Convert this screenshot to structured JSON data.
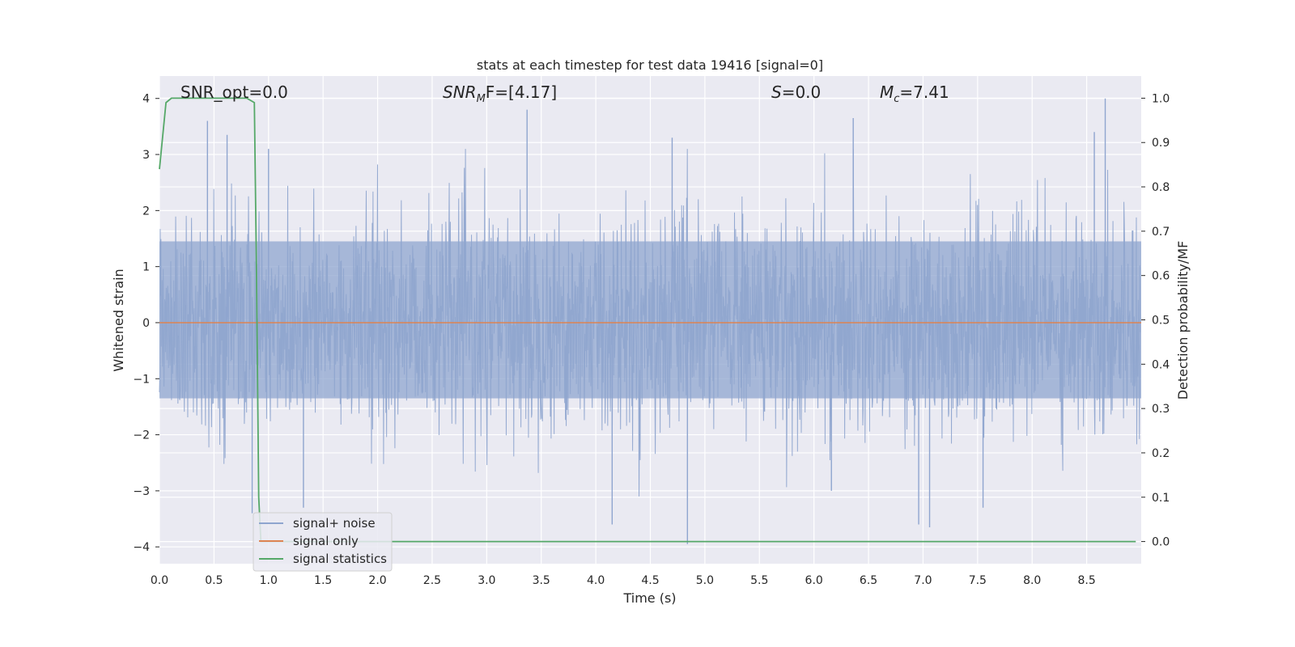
{
  "chart_data": {
    "type": "line",
    "title": "stats at each timestep for test data 19416 [signal=0]",
    "xlabel": "Time (s)",
    "ylabel": "Whitened strain",
    "y2label": "Detection probability/MF",
    "xlim": [
      0.0,
      9.0
    ],
    "ylim": [
      -4.3,
      4.4
    ],
    "y2lim": [
      -0.05,
      1.05
    ],
    "x_ticks": [
      "0.0",
      "0.5",
      "1.0",
      "1.5",
      "2.0",
      "2.5",
      "3.0",
      "3.5",
      "4.0",
      "4.5",
      "5.0",
      "5.5",
      "6.0",
      "6.5",
      "7.0",
      "7.5",
      "8.0",
      "8.5"
    ],
    "y_ticks": [
      "−4",
      "−3",
      "−2",
      "−1",
      "0",
      "1",
      "2",
      "3",
      "4"
    ],
    "y2_ticks": [
      "0.0",
      "0.1",
      "0.2",
      "0.3",
      "0.4",
      "0.5",
      "0.6",
      "0.7",
      "0.8",
      "0.9",
      "1.0"
    ],
    "grid": true,
    "legend_position": "lower-left",
    "annotations": {
      "snr_opt": "SNR_opt=0.0",
      "snr_mf_main": "SNR",
      "snr_mf_sub": "M",
      "snr_mf_rest": "F=[4.17]",
      "s_main": "S",
      "s_rest": "=0.0",
      "mc_main": "M",
      "mc_sub": "c",
      "mc_rest": "=7.41"
    },
    "series": [
      {
        "name": "signal+ noise",
        "color": "#8fa5cf",
        "axis": "left",
        "description_values": "white gaussian noise, std ~1, peaks about ±3.9",
        "peak_highs": [
          [
            0.44,
            3.6
          ],
          [
            0.62,
            3.35
          ],
          [
            1.0,
            3.1
          ],
          [
            3.37,
            3.8
          ],
          [
            4.7,
            3.3
          ],
          [
            6.36,
            3.65
          ],
          [
            8.57,
            3.4
          ],
          [
            8.67,
            4.0
          ]
        ],
        "peak_lows": [
          [
            0.85,
            -3.4
          ],
          [
            1.32,
            -3.3
          ],
          [
            4.15,
            -3.6
          ],
          [
            4.84,
            -3.95
          ],
          [
            6.16,
            -3.0
          ],
          [
            6.96,
            -3.6
          ],
          [
            7.06,
            -3.65
          ],
          [
            7.55,
            -3.3
          ]
        ]
      },
      {
        "name": "signal only",
        "color": "#dd8452",
        "axis": "left",
        "x": [
          0.0,
          9.0
        ],
        "y": [
          0.0,
          0.0
        ]
      },
      {
        "name": "signal statistics",
        "color": "#55a868",
        "axis": "right",
        "x": [
          0.0,
          0.06,
          0.11,
          0.2,
          0.4,
          0.6,
          0.8,
          0.87,
          0.89,
          0.91,
          0.93,
          1.0,
          2.0,
          3.0,
          4.0,
          5.0,
          6.0,
          7.0,
          8.0,
          8.95
        ],
        "y": [
          0.84,
          0.99,
          1.0,
          1.0,
          1.0,
          1.0,
          1.0,
          0.99,
          0.6,
          0.1,
          0.0,
          0.0,
          0.0,
          0.0,
          0.0,
          0.0,
          0.0,
          0.0,
          0.0,
          0.0
        ]
      }
    ]
  }
}
